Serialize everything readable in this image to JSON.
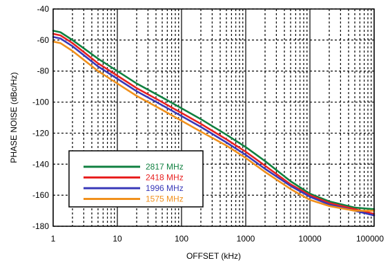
{
  "chart_data": {
    "type": "line",
    "title": "",
    "xlabel": "OFFSET (kHz)",
    "ylabel": "PHASE NOISE (dBc/Hz)",
    "x_scale": "log",
    "xlim": [
      1,
      100000
    ],
    "ylim": [
      -180,
      -40
    ],
    "x_ticks": [
      1,
      10,
      100,
      1000,
      10000,
      100000
    ],
    "x_tick_labels": [
      "1",
      "10",
      "100",
      "1000",
      "10000",
      "100000"
    ],
    "y_ticks": [
      -180,
      -160,
      -140,
      -120,
      -100,
      -80,
      -60,
      -40
    ],
    "y_tick_labels": [
      "-180",
      "-160",
      "-140",
      "-120",
      "-100",
      "-80",
      "-60",
      "-40"
    ],
    "grid": true,
    "legend_position": "bottom-left",
    "series": [
      {
        "name": "2817 MHz",
        "color": "#108040",
        "x": [
          1,
          1.3,
          2,
          5,
          10,
          20,
          50,
          100,
          200,
          500,
          1000,
          2000,
          5000,
          10000,
          20000,
          50000,
          100000
        ],
        "y": [
          -54,
          -55,
          -60,
          -72,
          -80,
          -88,
          -97,
          -104,
          -111,
          -121,
          -129,
          -138,
          -151,
          -159,
          -164,
          -168,
          -169
        ]
      },
      {
        "name": "2418 MHz",
        "color": "#e82020",
        "x": [
          1,
          1.3,
          2,
          5,
          10,
          20,
          50,
          100,
          200,
          500,
          1000,
          2000,
          5000,
          10000,
          20000,
          50000,
          100000
        ],
        "y": [
          -56,
          -57,
          -62,
          -75,
          -83,
          -91,
          -100,
          -107,
          -114,
          -124,
          -132,
          -141,
          -153,
          -160,
          -165,
          -169,
          -172
        ]
      },
      {
        "name": "1996 MHz",
        "color": "#3838b8",
        "x": [
          1,
          1.3,
          2,
          5,
          10,
          20,
          50,
          100,
          200,
          500,
          1000,
          2000,
          5000,
          10000,
          20000,
          50000,
          100000
        ],
        "y": [
          -58,
          -59,
          -64,
          -77,
          -85,
          -93,
          -102,
          -109,
          -116,
          -126,
          -134,
          -143,
          -154,
          -161,
          -166,
          -170,
          -173
        ]
      },
      {
        "name": "1575 MHz",
        "color": "#f0901c",
        "x": [
          1,
          1.3,
          2,
          5,
          10,
          20,
          50,
          100,
          200,
          500,
          1000,
          2000,
          5000,
          10000,
          20000,
          50000,
          100000
        ],
        "y": [
          -61,
          -62,
          -67,
          -80,
          -88,
          -96,
          -105,
          -112,
          -119,
          -128,
          -136,
          -145,
          -156,
          -163,
          -167,
          -170,
          -170
        ]
      }
    ]
  }
}
